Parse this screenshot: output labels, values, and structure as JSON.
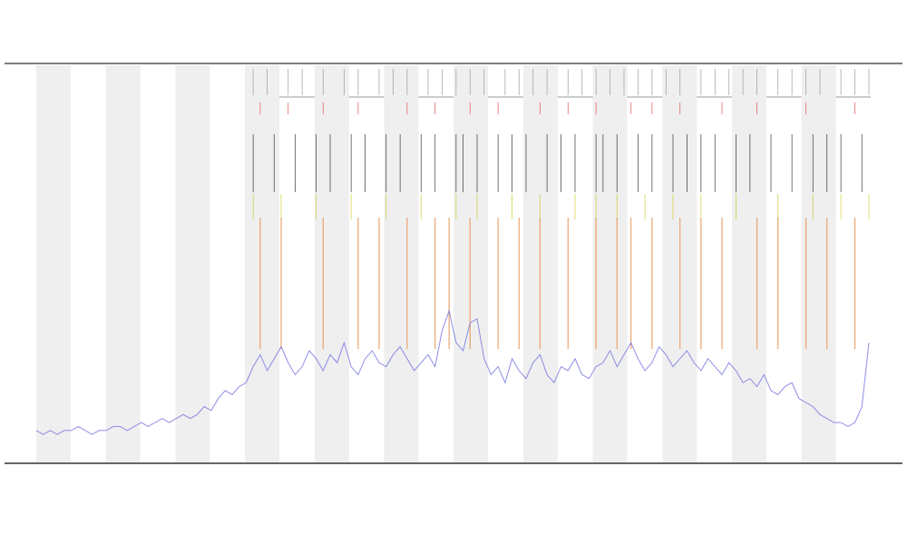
{
  "chart_data": {
    "type": "line",
    "series": [
      {
        "color": "#6a6ae0",
        "values": [
          8,
          7,
          8,
          7,
          8,
          8,
          9,
          8,
          7,
          8,
          8,
          9,
          9,
          8,
          9,
          10,
          9,
          10,
          11,
          10,
          11,
          12,
          11,
          12,
          14,
          13,
          16,
          18,
          17,
          19,
          20,
          24,
          27,
          23,
          26,
          29,
          25,
          22,
          24,
          28,
          26,
          23,
          27,
          25,
          30,
          24,
          22,
          26,
          28,
          25,
          24,
          27,
          29,
          26,
          23,
          25,
          27,
          24,
          33,
          38,
          30,
          28,
          35,
          36,
          26,
          22,
          24,
          20,
          26,
          23,
          21,
          25,
          27,
          22,
          20,
          24,
          23,
          26,
          22,
          21,
          24,
          25,
          28,
          24,
          27,
          30,
          26,
          23,
          25,
          29,
          27,
          24,
          26,
          28,
          25,
          23,
          26,
          24,
          22,
          25,
          23,
          20,
          21,
          19,
          22,
          18,
          17,
          19,
          20,
          16,
          15,
          14,
          12,
          11,
          10,
          10,
          9,
          10,
          14,
          30
        ]
      }
    ],
    "ylim": [
      0,
      100
    ],
    "event_rows": [
      {
        "color": "#999999",
        "positions": [
          31,
          33,
          36,
          38,
          41,
          44,
          46,
          49,
          51,
          53,
          56,
          58,
          60,
          62,
          64,
          67,
          69,
          71,
          73,
          76,
          78,
          80,
          82,
          84,
          86,
          88,
          90,
          92,
          95,
          97,
          99,
          101,
          103,
          106,
          108,
          110,
          112,
          115,
          117,
          119
        ]
      },
      {
        "color": "#e05050",
        "positions": [
          32,
          36,
          41,
          46,
          53,
          57,
          62,
          66,
          72,
          76,
          80,
          85,
          88,
          92,
          98,
          103,
          110,
          117
        ]
      },
      {
        "color": "#333333",
        "positions": [
          31,
          34,
          37,
          40,
          42,
          45,
          47,
          50,
          52,
          55,
          57,
          60,
          61,
          63,
          66,
          68,
          70,
          73,
          75,
          77,
          80,
          81,
          83,
          86,
          88,
          91,
          93,
          95,
          97,
          100,
          102,
          105,
          108,
          111,
          113,
          115,
          118
        ]
      },
      {
        "color": "#cccc33",
        "positions": [
          31,
          35,
          40,
          45,
          50,
          55,
          60,
          63,
          68,
          72,
          77,
          80,
          83,
          87,
          91,
          95,
          100,
          106,
          111,
          115,
          119
        ]
      },
      {
        "color": "#e8965a",
        "positions": [
          32,
          35,
          41,
          46,
          49,
          53,
          57,
          59,
          62,
          66,
          69,
          72,
          76,
          80,
          83,
          85,
          88,
          92,
          95,
          98,
          103,
          106,
          110,
          113,
          117
        ]
      }
    ]
  }
}
